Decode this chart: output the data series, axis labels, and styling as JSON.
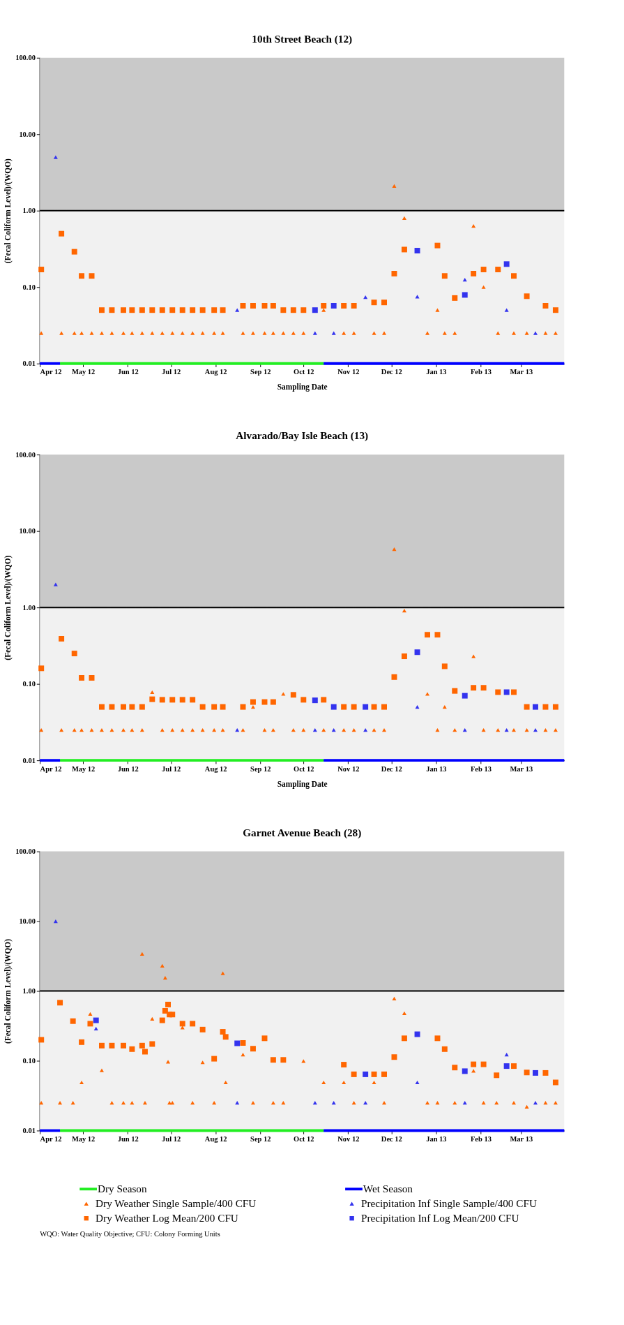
{
  "chart_data": [
    {
      "type": "scatter",
      "title": "10th Street Beach (12)",
      "xlabel": "Sampling Date",
      "ylabel": "(Fecal Coliform Level)/(WQO)",
      "log": "y",
      "xlim": [
        "2012-04-01",
        "2013-03-31"
      ],
      "ylim": [
        0.01,
        100
      ],
      "xticks": [
        {
          "value": "2012-04-01",
          "label": "Apr 12"
        },
        {
          "value": "2012-05-01",
          "label": "May 12"
        },
        {
          "value": "2012-06-01",
          "label": "Jun 12"
        },
        {
          "value": "2012-07-01",
          "label": "Jul 12"
        },
        {
          "value": "2012-08-01",
          "label": "Aug 12"
        },
        {
          "value": "2012-09-01",
          "label": "Sep 12"
        },
        {
          "value": "2012-10-01",
          "label": "Oct 12"
        },
        {
          "value": "2012-11-01",
          "label": "Nov 12"
        },
        {
          "value": "2012-12-01",
          "label": "Dec 12"
        },
        {
          "value": "2013-01-01",
          "label": "Jan 13"
        },
        {
          "value": "2013-02-01",
          "label": "Feb 13"
        },
        {
          "value": "2013-03-01",
          "label": "Mar 13"
        }
      ],
      "yticks": [
        {
          "value": 0.01,
          "label": "0.01"
        },
        {
          "value": 0.1,
          "label": "0.10"
        },
        {
          "value": 1,
          "label": "1.00"
        },
        {
          "value": 10,
          "label": "10.00"
        },
        {
          "value": 100,
          "label": "100.00"
        }
      ],
      "bands": [
        {
          "axis": "y",
          "from": 1,
          "to": 100,
          "color": "#c9c9c9"
        },
        {
          "axis": "y",
          "from": 0.01,
          "to": 1,
          "color": "#f1f1f1"
        }
      ],
      "ref_lines": [
        {
          "axis": "y",
          "value": 1,
          "color": "#000000"
        }
      ],
      "series": [
        {
          "type": "line",
          "color": "#22ee22",
          "x": [
            "2012-04-15",
            "2012-10-15"
          ],
          "values": [
            0.01,
            0.01
          ]
        },
        {
          "marker": "triangle",
          "color": "#ff6600",
          "x": [
            "2012-04-02",
            "2012-04-16",
            "2012-04-25",
            "2012-04-30",
            "2012-05-07",
            "2012-05-14",
            "2012-05-21",
            "2012-05-29",
            "2012-06-04",
            "2012-06-11",
            "2012-06-18",
            "2012-06-25",
            "2012-07-02",
            "2012-07-09",
            "2012-07-16",
            "2012-07-23",
            "2012-07-31",
            "2012-08-06",
            "2012-08-20",
            "2012-08-27",
            "2012-09-04",
            "2012-09-10",
            "2012-09-17",
            "2012-09-24",
            "2012-10-01",
            "2012-10-15",
            "2012-10-29",
            "2012-11-05",
            "2012-11-19",
            "2012-11-26",
            "2012-12-03",
            "2012-12-10",
            "2012-12-26",
            "2013-01-02",
            "2013-01-07",
            "2013-01-14",
            "2013-01-27",
            "2013-02-03",
            "2013-02-13",
            "2013-02-24",
            "2013-03-05",
            "2013-03-18",
            "2013-03-25"
          ],
          "values": [
            0.025,
            0.025,
            0.025,
            0.025,
            0.025,
            0.025,
            0.025,
            0.025,
            0.025,
            0.025,
            0.025,
            0.025,
            0.025,
            0.025,
            0.025,
            0.025,
            0.025,
            0.025,
            0.025,
            0.025,
            0.025,
            0.025,
            0.025,
            0.025,
            0.025,
            0.05,
            0.025,
            0.025,
            0.025,
            0.025,
            2.1,
            0.8,
            0.025,
            0.05,
            0.025,
            0.025,
            0.63,
            0.1,
            0.025,
            0.025,
            0.025,
            0.025,
            0.025
          ]
        },
        {
          "marker": "square",
          "color": "#ff6600",
          "x": [
            "2012-04-02",
            "2012-04-16",
            "2012-04-25",
            "2012-04-30",
            "2012-05-07",
            "2012-05-14",
            "2012-05-21",
            "2012-05-29",
            "2012-06-04",
            "2012-06-11",
            "2012-06-18",
            "2012-06-25",
            "2012-07-02",
            "2012-07-09",
            "2012-07-16",
            "2012-07-23",
            "2012-07-31",
            "2012-08-06",
            "2012-08-20",
            "2012-08-27",
            "2012-09-04",
            "2012-09-10",
            "2012-09-17",
            "2012-09-24",
            "2012-10-01",
            "2012-10-15",
            "2012-10-29",
            "2012-11-05",
            "2012-11-19",
            "2012-11-26",
            "2012-12-03",
            "2012-12-10",
            "2013-01-02",
            "2013-01-07",
            "2013-01-14",
            "2013-01-27",
            "2013-02-03",
            "2013-02-13",
            "2013-02-24",
            "2013-03-05",
            "2013-03-18",
            "2013-03-25"
          ],
          "values": [
            0.17,
            0.5,
            0.29,
            0.14,
            0.14,
            0.05,
            0.05,
            0.05,
            0.05,
            0.05,
            0.05,
            0.05,
            0.05,
            0.05,
            0.05,
            0.05,
            0.05,
            0.05,
            0.057,
            0.057,
            0.057,
            0.057,
            0.05,
            0.05,
            0.05,
            0.057,
            0.057,
            0.057,
            0.063,
            0.063,
            0.15,
            0.31,
            0.35,
            0.14,
            0.072,
            0.15,
            0.17,
            0.17,
            0.14,
            0.076,
            0.057,
            0.05
          ]
        },
        {
          "type": "line",
          "color": "#0000ff",
          "x": [
            "2012-04-01",
            "2012-04-15",
            "2012-07-01",
            "2012-10-15",
            "2013-03-31"
          ],
          "values": [
            0.01,
            0.01,
            null,
            0.01,
            0.01
          ]
        },
        {
          "marker": "triangle",
          "color": "#3333ee",
          "x": [
            "2012-04-12",
            "2012-08-16",
            "2012-10-09",
            "2012-10-22",
            "2012-11-13",
            "2012-12-19",
            "2013-01-21",
            "2013-02-19",
            "2013-03-11"
          ],
          "values": [
            5.0,
            0.05,
            0.025,
            0.025,
            0.074,
            0.075,
            0.125,
            0.05,
            0.025
          ]
        },
        {
          "marker": "square",
          "color": "#3333ee",
          "x": [
            "2012-10-09",
            "2012-10-22",
            "2012-12-19",
            "2013-01-21",
            "2013-02-19"
          ],
          "values": [
            0.05,
            0.057,
            0.3,
            0.079,
            0.2
          ]
        }
      ]
    },
    {
      "type": "scatter",
      "title": "Alvarado/Bay Isle Beach (13)",
      "xlabel": "Sampling Date",
      "ylabel": "(Fecal Coliform Level)/(WQO)",
      "log": "y",
      "xlim": [
        "2012-04-01",
        "2013-03-31"
      ],
      "ylim": [
        0.01,
        100
      ],
      "xticks": [
        {
          "value": "2012-04-01",
          "label": "Apr 12"
        },
        {
          "value": "2012-05-01",
          "label": "May 12"
        },
        {
          "value": "2012-06-01",
          "label": "Jun 12"
        },
        {
          "value": "2012-07-01",
          "label": "Jul 12"
        },
        {
          "value": "2012-08-01",
          "label": "Aug 12"
        },
        {
          "value": "2012-09-01",
          "label": "Sep 12"
        },
        {
          "value": "2012-10-01",
          "label": "Oct 12"
        },
        {
          "value": "2012-11-01",
          "label": "Nov 12"
        },
        {
          "value": "2012-12-01",
          "label": "Dec 12"
        },
        {
          "value": "2013-01-01",
          "label": "Jan 13"
        },
        {
          "value": "2013-02-01",
          "label": "Feb 13"
        },
        {
          "value": "2013-03-01",
          "label": "Mar 13"
        }
      ],
      "yticks": [
        {
          "value": 0.01,
          "label": "0.01"
        },
        {
          "value": 0.1,
          "label": "0.10"
        },
        {
          "value": 1,
          "label": "1.00"
        },
        {
          "value": 10,
          "label": "10.00"
        },
        {
          "value": 100,
          "label": "100.00"
        }
      ],
      "bands": [
        {
          "axis": "y",
          "from": 1,
          "to": 100,
          "color": "#c9c9c9"
        },
        {
          "axis": "y",
          "from": 0.01,
          "to": 1,
          "color": "#f1f1f1"
        }
      ],
      "ref_lines": [
        {
          "axis": "y",
          "value": 1,
          "color": "#000000"
        }
      ],
      "series": [
        {
          "type": "line",
          "color": "#22ee22",
          "x": [
            "2012-04-15",
            "2012-10-15"
          ],
          "values": [
            0.01,
            0.01
          ]
        },
        {
          "marker": "triangle",
          "color": "#ff6600",
          "x": [
            "2012-04-02",
            "2012-04-16",
            "2012-04-25",
            "2012-04-30",
            "2012-05-07",
            "2012-05-14",
            "2012-05-21",
            "2012-05-29",
            "2012-06-04",
            "2012-06-11",
            "2012-06-18",
            "2012-06-25",
            "2012-07-02",
            "2012-07-09",
            "2012-07-16",
            "2012-07-23",
            "2012-07-31",
            "2012-08-06",
            "2012-08-20",
            "2012-08-27",
            "2012-09-04",
            "2012-09-10",
            "2012-09-17",
            "2012-09-24",
            "2012-10-01",
            "2012-10-15",
            "2012-10-29",
            "2012-11-05",
            "2012-11-19",
            "2012-11-26",
            "2012-12-03",
            "2012-12-10",
            "2012-12-26",
            "2013-01-02",
            "2013-01-07",
            "2013-01-14",
            "2013-01-27",
            "2013-02-03",
            "2013-02-13",
            "2013-02-24",
            "2013-03-05",
            "2013-03-18",
            "2013-03-25"
          ],
          "values": [
            0.025,
            0.025,
            0.025,
            0.025,
            0.025,
            0.025,
            0.025,
            0.025,
            0.025,
            0.025,
            0.078,
            0.025,
            0.025,
            0.025,
            0.025,
            0.025,
            0.025,
            0.025,
            0.025,
            0.05,
            0.025,
            0.025,
            0.074,
            0.025,
            0.025,
            0.025,
            0.025,
            0.025,
            0.025,
            0.025,
            5.8,
            0.91,
            0.074,
            0.025,
            0.05,
            0.025,
            0.23,
            0.025,
            0.025,
            0.025,
            0.025,
            0.025,
            0.025
          ]
        },
        {
          "marker": "square",
          "color": "#ff6600",
          "x": [
            "2012-04-02",
            "2012-04-16",
            "2012-04-25",
            "2012-04-30",
            "2012-05-07",
            "2012-05-14",
            "2012-05-21",
            "2012-05-29",
            "2012-06-04",
            "2012-06-11",
            "2012-06-18",
            "2012-06-25",
            "2012-07-02",
            "2012-07-09",
            "2012-07-16",
            "2012-07-23",
            "2012-07-31",
            "2012-08-06",
            "2012-08-20",
            "2012-08-27",
            "2012-09-04",
            "2012-09-10",
            "2012-09-24",
            "2012-10-01",
            "2012-10-15",
            "2012-10-29",
            "2012-11-05",
            "2012-11-19",
            "2012-11-26",
            "2012-12-03",
            "2012-12-10",
            "2012-12-26",
            "2013-01-02",
            "2013-01-07",
            "2013-01-14",
            "2013-01-27",
            "2013-02-03",
            "2013-02-13",
            "2013-02-24",
            "2013-03-05",
            "2013-03-18",
            "2013-03-25"
          ],
          "values": [
            0.16,
            0.39,
            0.25,
            0.12,
            0.12,
            0.05,
            0.05,
            0.05,
            0.05,
            0.05,
            0.063,
            0.062,
            0.062,
            0.062,
            0.062,
            0.05,
            0.05,
            0.05,
            0.05,
            0.058,
            0.058,
            0.058,
            0.072,
            0.062,
            0.062,
            0.05,
            0.05,
            0.05,
            0.05,
            0.123,
            0.23,
            0.44,
            0.44,
            0.17,
            0.081,
            0.089,
            0.089,
            0.078,
            0.078,
            0.05,
            0.05,
            0.05
          ]
        },
        {
          "type": "line",
          "color": "#0000ff",
          "x": [
            "2012-04-01",
            "2012-04-15",
            "2012-07-01",
            "2012-10-15",
            "2013-03-31"
          ],
          "values": [
            0.01,
            0.01,
            null,
            0.01,
            0.01
          ]
        },
        {
          "marker": "triangle",
          "color": "#3333ee",
          "x": [
            "2012-04-12",
            "2012-08-16",
            "2012-10-09",
            "2012-10-22",
            "2012-11-13",
            "2012-12-19",
            "2013-01-21",
            "2013-02-19",
            "2013-03-11"
          ],
          "values": [
            2.0,
            0.025,
            0.025,
            0.025,
            0.025,
            0.05,
            0.025,
            0.025,
            0.025
          ]
        },
        {
          "marker": "square",
          "color": "#3333ee",
          "x": [
            "2012-10-09",
            "2012-10-22",
            "2012-11-13",
            "2012-12-19",
            "2013-01-21",
            "2013-02-19",
            "2013-03-11"
          ],
          "values": [
            0.061,
            0.05,
            0.05,
            0.26,
            0.07,
            0.078,
            0.05
          ]
        }
      ]
    },
    {
      "type": "scatter",
      "title": "Garnet Avenue Beach (28)",
      "ylabel": "(Fecal Coliform Level)/(WQO)",
      "log": "y",
      "legend": "bottom",
      "annotations": [
        "WQO:  Water Quality Objective;  CFU:  Colony Forming Units"
      ],
      "xlim": [
        "2012-04-01",
        "2013-03-31"
      ],
      "ylim": [
        0.01,
        100
      ],
      "xticks": [
        {
          "value": "2012-04-01",
          "label": "Apr 12"
        },
        {
          "value": "2012-05-01",
          "label": "May 12"
        },
        {
          "value": "2012-06-01",
          "label": "Jun 12"
        },
        {
          "value": "2012-07-01",
          "label": "Jul 12"
        },
        {
          "value": "2012-08-01",
          "label": "Aug 12"
        },
        {
          "value": "2012-09-01",
          "label": "Sep 12"
        },
        {
          "value": "2012-10-01",
          "label": "Oct 12"
        },
        {
          "value": "2012-11-01",
          "label": "Nov 12"
        },
        {
          "value": "2012-12-01",
          "label": "Dec 12"
        },
        {
          "value": "2013-01-01",
          "label": "Jan 13"
        },
        {
          "value": "2013-02-01",
          "label": "Feb 13"
        },
        {
          "value": "2013-03-01",
          "label": "Mar 13"
        }
      ],
      "yticks": [
        {
          "value": 0.01,
          "label": "0.01"
        },
        {
          "value": 0.1,
          "label": "0.10"
        },
        {
          "value": 1,
          "label": "1.00"
        },
        {
          "value": 10,
          "label": "10.00"
        },
        {
          "value": 100,
          "label": "100.00"
        }
      ],
      "bands": [
        {
          "axis": "y",
          "from": 1,
          "to": 100,
          "color": "#c9c9c9"
        },
        {
          "axis": "y",
          "from": 0.01,
          "to": 1,
          "color": "#f1f1f1"
        }
      ],
      "ref_lines": [
        {
          "axis": "y",
          "value": 1,
          "color": "#000000"
        }
      ],
      "series": [
        {
          "name": "Dry Season",
          "type": "line",
          "color": "#22ee22",
          "x": [
            "2012-04-15",
            "2012-10-15"
          ],
          "values": [
            0.01,
            0.01
          ]
        },
        {
          "name": "Dry Weather Single Sample/400 CFU",
          "marker": "triangle",
          "color": "#ff6600",
          "x": [
            "2012-04-02",
            "2012-04-15",
            "2012-04-24",
            "2012-04-30",
            "2012-05-06",
            "2012-05-14",
            "2012-05-21",
            "2012-05-29",
            "2012-06-04",
            "2012-06-11",
            "2012-06-13",
            "2012-06-18",
            "2012-06-25",
            "2012-06-27",
            "2012-06-29",
            "2012-06-30",
            "2012-07-02",
            "2012-07-09",
            "2012-07-16",
            "2012-07-23",
            "2012-07-31",
            "2012-08-06",
            "2012-08-08",
            "2012-08-20",
            "2012-08-27",
            "2012-09-10",
            "2012-09-17",
            "2012-10-01",
            "2012-10-15",
            "2012-10-29",
            "2012-11-05",
            "2012-11-19",
            "2012-11-26",
            "2012-12-03",
            "2012-12-10",
            "2012-12-26",
            "2013-01-02",
            "2013-01-14",
            "2013-01-27",
            "2013-02-03",
            "2013-02-12",
            "2013-02-24",
            "2013-03-05",
            "2013-03-18",
            "2013-03-25"
          ],
          "values": [
            0.025,
            0.025,
            0.025,
            0.049,
            0.47,
            0.073,
            0.025,
            0.025,
            0.025,
            3.4,
            0.025,
            0.4,
            2.3,
            1.55,
            0.097,
            0.025,
            0.025,
            0.3,
            0.025,
            0.095,
            0.025,
            1.8,
            0.049,
            0.123,
            0.025,
            0.025,
            0.025,
            0.099,
            0.049,
            0.049,
            0.025,
            0.049,
            0.025,
            0.78,
            0.48,
            0.025,
            0.025,
            0.025,
            0.072,
            0.025,
            0.025,
            0.025,
            0.022,
            0.025,
            0.025
          ]
        },
        {
          "name": "Dry Weather Log Mean/200 CFU",
          "marker": "square",
          "color": "#ff6600",
          "x": [
            "2012-04-02",
            "2012-04-15",
            "2012-04-24",
            "2012-04-30",
            "2012-05-06",
            "2012-05-14",
            "2012-05-21",
            "2012-05-29",
            "2012-06-04",
            "2012-06-11",
            "2012-06-13",
            "2012-06-18",
            "2012-06-25",
            "2012-06-27",
            "2012-06-29",
            "2012-06-30",
            "2012-07-02",
            "2012-07-09",
            "2012-07-16",
            "2012-07-23",
            "2012-07-31",
            "2012-08-06",
            "2012-08-08",
            "2012-08-20",
            "2012-08-27",
            "2012-09-04",
            "2012-09-10",
            "2012-09-17",
            "2012-10-29",
            "2012-11-05",
            "2012-11-19",
            "2012-11-26",
            "2012-12-03",
            "2012-12-10",
            "2013-01-02",
            "2013-01-07",
            "2013-01-14",
            "2013-01-27",
            "2013-02-03",
            "2013-02-12",
            "2013-02-24",
            "2013-03-05",
            "2013-03-18",
            "2013-03-25"
          ],
          "values": [
            0.2,
            0.68,
            0.37,
            0.185,
            0.34,
            0.165,
            0.165,
            0.165,
            0.147,
            0.165,
            0.135,
            0.174,
            0.38,
            0.52,
            0.64,
            0.46,
            0.46,
            0.34,
            0.34,
            0.28,
            0.107,
            0.26,
            0.22,
            0.18,
            0.149,
            0.21,
            0.103,
            0.103,
            0.088,
            0.064,
            0.064,
            0.064,
            0.113,
            0.21,
            0.21,
            0.147,
            0.08,
            0.089,
            0.089,
            0.062,
            0.084,
            0.068,
            0.067,
            0.049
          ]
        },
        {
          "name": "Wet Season",
          "type": "line",
          "color": "#0000ff",
          "x": [
            "2012-04-01",
            "2012-04-15",
            "2012-07-01",
            "2012-10-15",
            "2013-03-31"
          ],
          "values": [
            0.01,
            0.01,
            null,
            0.01,
            0.01
          ]
        },
        {
          "name": "Precipitation Inf Single Sample/400 CFU",
          "marker": "triangle",
          "color": "#3333ee",
          "x": [
            "2012-04-12",
            "2012-05-10",
            "2012-08-16",
            "2012-10-09",
            "2012-10-22",
            "2012-11-13",
            "2012-12-19",
            "2013-01-21",
            "2013-02-19",
            "2013-03-11"
          ],
          "values": [
            10,
            0.29,
            0.025,
            0.025,
            0.025,
            0.025,
            0.049,
            0.025,
            0.123,
            0.025
          ]
        },
        {
          "name": "Precipitation Inf Log Mean/200 CFU",
          "marker": "square",
          "color": "#3333ee",
          "x": [
            "2012-05-10",
            "2012-08-16",
            "2012-11-13",
            "2012-12-19",
            "2013-01-21",
            "2013-02-19",
            "2013-03-11"
          ],
          "values": [
            0.38,
            0.178,
            0.064,
            0.24,
            0.071,
            0.084,
            0.067
          ]
        }
      ]
    }
  ]
}
